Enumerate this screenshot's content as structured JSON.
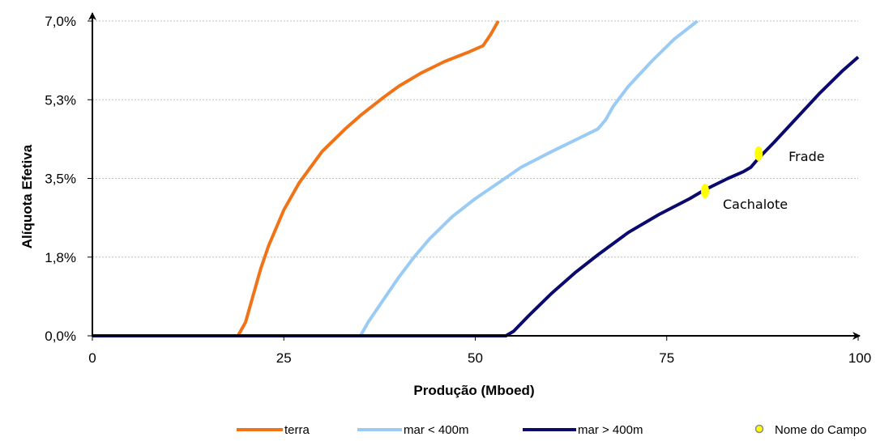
{
  "chart_data": {
    "type": "line",
    "xlabel": "Produção (Mboed)",
    "ylabel": "Alíquota Efetiva",
    "xlim": [
      0,
      100
    ],
    "ylim": [
      0,
      7.0
    ],
    "x_ticks": [
      {
        "value": 0,
        "label": "0"
      },
      {
        "value": 25,
        "label": "25"
      },
      {
        "value": 50,
        "label": "50"
      },
      {
        "value": 75,
        "label": "75"
      },
      {
        "value": 100,
        "label": "100"
      }
    ],
    "y_ticks": [
      {
        "value": 0,
        "label": "0,0%"
      },
      {
        "value": 1.75,
        "label": "1,8%"
      },
      {
        "value": 3.5,
        "label": "3,5%"
      },
      {
        "value": 5.25,
        "label": "5,3%"
      },
      {
        "value": 7.0,
        "label": "7,0%"
      }
    ],
    "grid": "horizontal dotted",
    "legend_position": "bottom",
    "series": [
      {
        "name": "terra",
        "color": "#f07317",
        "points": [
          [
            0,
            0
          ],
          [
            19,
            0
          ],
          [
            20,
            0.3
          ],
          [
            21,
            0.9
          ],
          [
            22,
            1.5
          ],
          [
            23,
            2.0
          ],
          [
            25,
            2.8
          ],
          [
            27,
            3.4
          ],
          [
            30,
            4.1
          ],
          [
            33,
            4.6
          ],
          [
            35,
            4.9
          ],
          [
            38,
            5.3
          ],
          [
            40,
            5.55
          ],
          [
            43,
            5.85
          ],
          [
            46,
            6.1
          ],
          [
            49,
            6.3
          ],
          [
            51,
            6.45
          ],
          [
            52,
            6.7
          ],
          [
            53,
            7.0
          ]
        ]
      },
      {
        "name": "mar < 400m",
        "color": "#9acbf5",
        "points": [
          [
            0,
            0
          ],
          [
            35,
            0
          ],
          [
            36,
            0.3
          ],
          [
            38,
            0.8
          ],
          [
            40,
            1.3
          ],
          [
            42,
            1.75
          ],
          [
            44,
            2.15
          ],
          [
            47,
            2.65
          ],
          [
            50,
            3.05
          ],
          [
            53,
            3.4
          ],
          [
            56,
            3.75
          ],
          [
            60,
            4.1
          ],
          [
            63,
            4.35
          ],
          [
            66,
            4.6
          ],
          [
            67,
            4.8
          ],
          [
            68,
            5.1
          ],
          [
            70,
            5.55
          ],
          [
            73,
            6.1
          ],
          [
            76,
            6.6
          ],
          [
            79,
            7.0
          ]
        ]
      },
      {
        "name": "mar > 400m",
        "color": "#0a0a6e",
        "points": [
          [
            0,
            0
          ],
          [
            54,
            0
          ],
          [
            55,
            0.1
          ],
          [
            57,
            0.45
          ],
          [
            60,
            0.95
          ],
          [
            63,
            1.4
          ],
          [
            66,
            1.8
          ],
          [
            70,
            2.3
          ],
          [
            74,
            2.7
          ],
          [
            78,
            3.05
          ],
          [
            80,
            3.25
          ],
          [
            83,
            3.5
          ],
          [
            85,
            3.65
          ],
          [
            86,
            3.75
          ],
          [
            87,
            3.95
          ],
          [
            89,
            4.3
          ],
          [
            92,
            4.85
          ],
          [
            95,
            5.4
          ],
          [
            98,
            5.9
          ],
          [
            100,
            6.2
          ]
        ]
      }
    ],
    "annotations": [
      {
        "label": "Frade",
        "x": 87,
        "y": 4.05
      },
      {
        "label": "Cachalote",
        "x": 80,
        "y": 3.22
      }
    ],
    "field_marker_color": "#ffff00",
    "legend": [
      {
        "label": "terra",
        "kind": "line",
        "color": "#f07317"
      },
      {
        "label": "mar < 400m",
        "kind": "line",
        "color": "#9acbf5"
      },
      {
        "label": "mar > 400m",
        "kind": "line",
        "color": "#0a0a6e"
      },
      {
        "label": "Nome do Campo",
        "kind": "marker",
        "color": "#ffff00"
      }
    ]
  }
}
